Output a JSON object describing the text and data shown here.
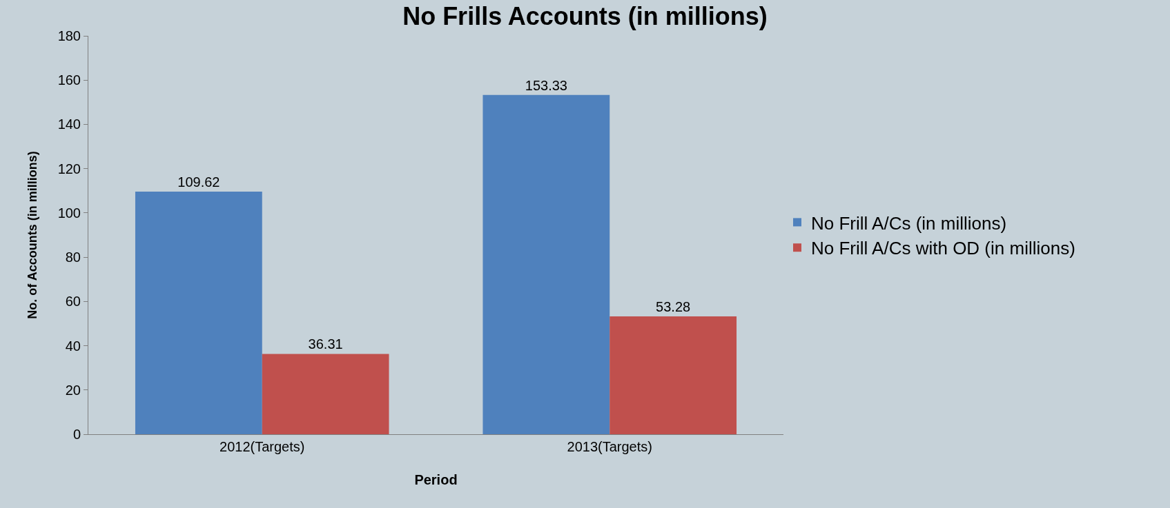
{
  "chart_data": {
    "type": "bar",
    "title": "No Frills Accounts (in millions)",
    "xlabel": "Period",
    "ylabel": "No. of Accounts (in millions)",
    "categories": [
      "2012(Targets)",
      "2013(Targets)"
    ],
    "series": [
      {
        "name": "No Frill A/Cs (in millions)",
        "color": "#4f81bd",
        "values": [
          109.62,
          153.33
        ]
      },
      {
        "name": "No Frill A/Cs with OD (in millions)",
        "color": "#c0504d",
        "values": [
          36.31,
          53.28
        ]
      }
    ],
    "ylim": [
      0,
      180
    ],
    "yticks": [
      0,
      20,
      40,
      60,
      80,
      100,
      120,
      140,
      160,
      180
    ],
    "grid": false,
    "legend": "right",
    "data_labels": true
  }
}
